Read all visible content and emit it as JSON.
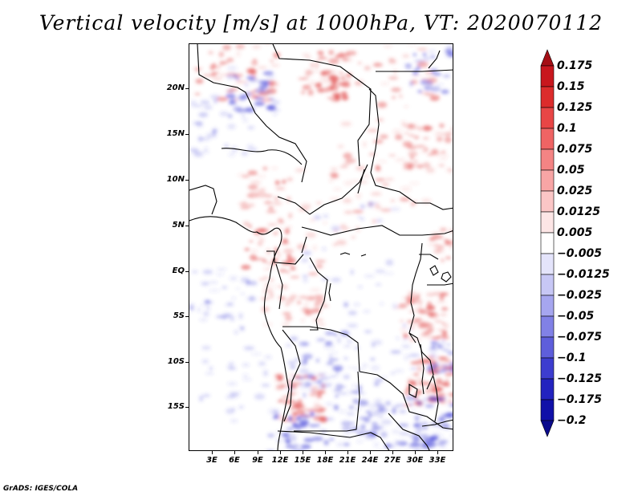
{
  "title": "Vertical velocity [m/s] at 1000hPa, VT: 2020070112",
  "footer": "GrADS: IGES/COLA",
  "y_axis_labels": [
    "20N",
    "15N",
    "10N",
    "5N",
    "EQ",
    "5S",
    "10S",
    "15S"
  ],
  "x_axis_labels": [
    "3E",
    "6E",
    "9E",
    "12E",
    "15E",
    "18E",
    "21E",
    "24E",
    "27E",
    "30E",
    "33E"
  ],
  "colorbar": {
    "levels": [
      "0.175",
      "0.15",
      "0.125",
      "0.1",
      "0.075",
      "0.05",
      "0.025",
      "0.0125",
      "0.005",
      "−0.005",
      "−0.0125",
      "−0.025",
      "−0.05",
      "−0.075",
      "−0.1",
      "−0.125",
      "−0.175",
      "−0.2"
    ],
    "colors": [
      "#a50f15",
      "#c8171e",
      "#dc2c2c",
      "#e84646",
      "#ef6464",
      "#f48484",
      "#f8a5a5",
      "#fbc6c6",
      "#fde6e6",
      "#ffffff",
      "#e4e4fb",
      "#c7c7f5",
      "#a6a6ef",
      "#8181e6",
      "#5e5edb",
      "#3d3dcf",
      "#2323bf",
      "#1010a8",
      "#0a0a8c"
    ]
  },
  "map": {
    "extent": {
      "lon": [
        0,
        35
      ],
      "lat": [
        -20,
        25
      ]
    },
    "field_colors": {
      "positive": "#e04848",
      "negative": "#4646d8"
    }
  }
}
